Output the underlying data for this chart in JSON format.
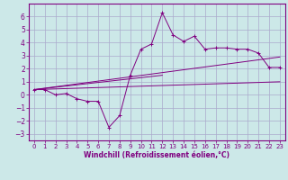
{
  "xlabel": "Windchill (Refroidissement éolien,°C)",
  "bg_color": "#cce8e8",
  "grid_color": "#aaaacc",
  "line_color": "#800080",
  "xlim": [
    -0.5,
    23.5
  ],
  "ylim": [
    -3.5,
    7.0
  ],
  "xticks": [
    0,
    1,
    2,
    3,
    4,
    5,
    6,
    7,
    8,
    9,
    10,
    11,
    12,
    13,
    14,
    15,
    16,
    17,
    18,
    19,
    20,
    21,
    22,
    23
  ],
  "yticks": [
    -3,
    -2,
    -1,
    0,
    1,
    2,
    3,
    4,
    5,
    6
  ],
  "scatter_x": [
    0,
    1,
    2,
    3,
    4,
    5,
    6,
    7,
    8,
    9,
    10,
    11,
    12,
    13,
    14,
    15,
    16,
    17,
    18,
    19,
    20,
    21,
    22,
    23
  ],
  "scatter_y": [
    0.4,
    0.4,
    0.0,
    0.1,
    -0.3,
    -0.5,
    -0.5,
    -2.5,
    -1.6,
    1.5,
    3.5,
    3.9,
    6.3,
    4.6,
    4.1,
    4.5,
    3.5,
    3.6,
    3.6,
    3.5,
    3.5,
    3.2,
    2.1,
    2.1
  ],
  "line1_x": [
    0,
    23
  ],
  "line1_y": [
    0.4,
    1.0
  ],
  "line2_x": [
    0,
    23
  ],
  "line2_y": [
    0.4,
    2.9
  ],
  "line3_x": [
    0,
    12
  ],
  "line3_y": [
    0.4,
    1.5
  ],
  "dpi": 100,
  "figsize": [
    3.2,
    2.0
  ],
  "font_size": 5.0,
  "xlabel_fontsize": 5.5
}
